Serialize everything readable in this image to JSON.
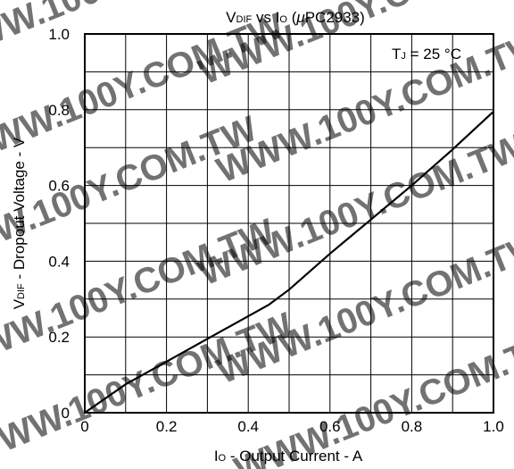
{
  "chart_data": {
    "type": "line",
    "title": {
      "main": "V",
      "main_sub": "DIF",
      "mid": " vs I",
      "mid_sub": "O",
      "open": " (",
      "mu": "μ",
      "part": "PC2933)"
    },
    "xlabel": {
      "main": "I",
      "sub": "O",
      "rest": " - Output Current - A"
    },
    "ylabel": {
      "main": "V",
      "sub": "DIF",
      "rest": " - Dropout Voltage - V"
    },
    "xlim": [
      0,
      1.0
    ],
    "ylim": [
      0,
      1.0
    ],
    "xticks": [
      "0",
      "0.2",
      "0.4",
      "0.6",
      "0.8",
      "1.0"
    ],
    "yticks": [
      "0",
      "0.2",
      "0.4",
      "0.6",
      "0.8",
      "1.0"
    ],
    "x_grid_step": 0.1,
    "y_grid_step": 0.1,
    "grid": true,
    "annotation": {
      "main": "T",
      "sub": "J",
      "rest": " = 25 °C",
      "position": "top-right"
    },
    "series": [
      {
        "x": [
          0,
          0.1,
          0.2,
          0.3,
          0.4,
          0.45,
          0.5,
          0.6,
          0.7,
          0.8,
          0.9,
          1.0
        ],
        "y": [
          0,
          0.075,
          0.135,
          0.195,
          0.255,
          0.285,
          0.325,
          0.42,
          0.51,
          0.6,
          0.695,
          0.795
        ]
      }
    ],
    "watermark": "WWW.100Y.COM.TW",
    "line_color": "#000000",
    "grid_color": "#000000"
  }
}
